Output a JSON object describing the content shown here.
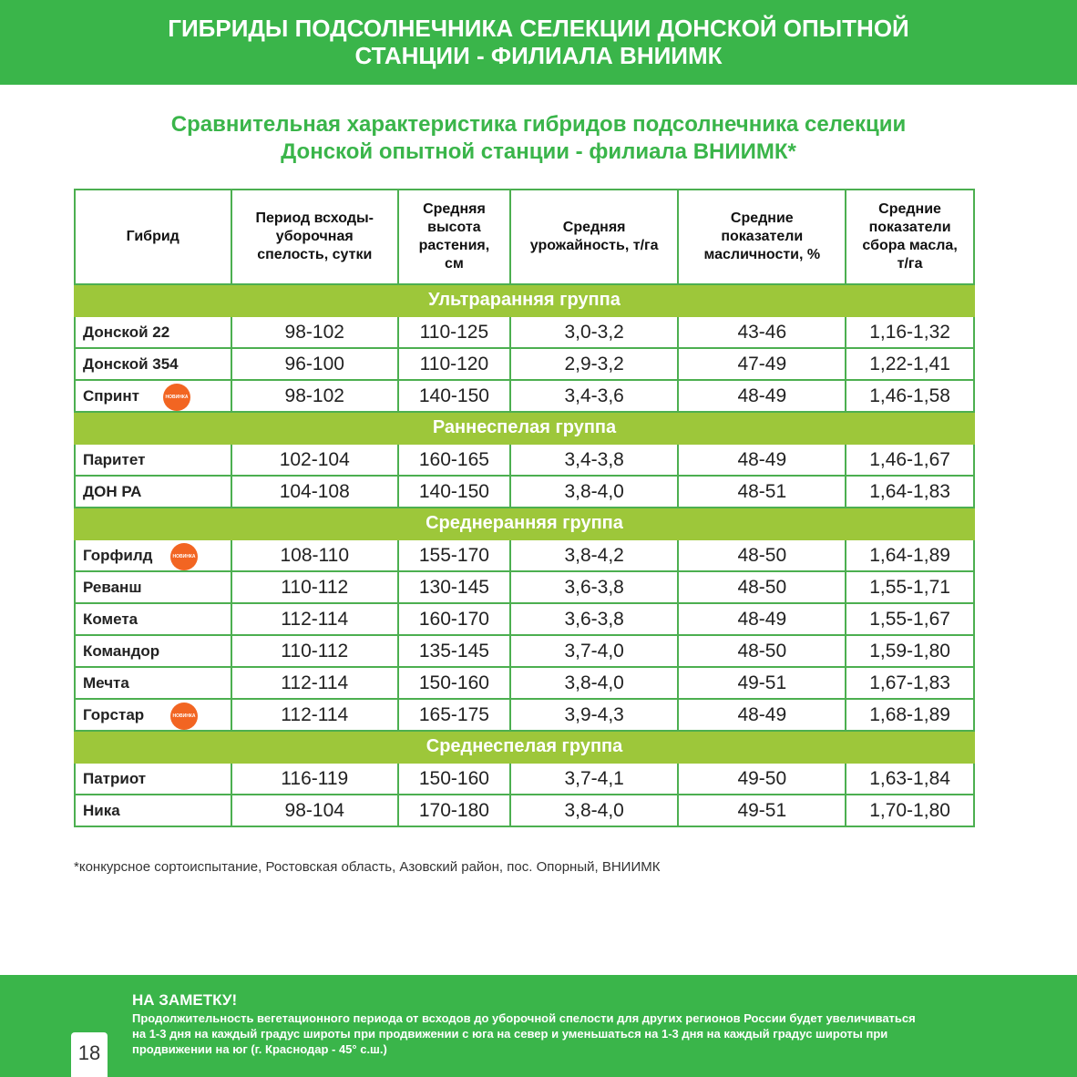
{
  "header": {
    "line1": "ГИБРИДЫ ПОДСОЛНЕЧНИКА СЕЛЕКЦИИ ДОНСКОЙ ОПЫТНОЙ",
    "line2": "СТАНЦИИ - ФИЛИАЛА ВНИИМК"
  },
  "subtitle": {
    "line1": "Сравнительная характеристика гибридов подсолнечника селекции",
    "line2": "Донской опытной станции - филиала ВНИИМК*"
  },
  "columns": [
    "Гибрид",
    "Период всходы-уборочная спелость, сутки",
    "Средняя высота растения, см",
    "Средняя урожайность, т/га",
    "Средние показатели масличности, %",
    "Средние показатели сбора масла, т/га"
  ],
  "badge": "НОВИНКА",
  "groups": [
    {
      "name": "Ультраранняя группа",
      "rows": [
        [
          "Донской 22",
          "98-102",
          "110-125",
          "3,0-3,2",
          "43-46",
          "1,16-1,32",
          false
        ],
        [
          "Донской 354",
          "96-100",
          "110-120",
          "2,9-3,2",
          "47-49",
          "1,22-1,41",
          false
        ],
        [
          "Спринт",
          "98-102",
          "140-150",
          "3,4-3,6",
          "48-49",
          "1,46-1,58",
          true
        ]
      ]
    },
    {
      "name": "Раннеспелая группа",
      "rows": [
        [
          "Паритет",
          "102-104",
          "160-165",
          "3,4-3,8",
          "48-49",
          "1,46-1,67",
          false
        ],
        [
          "ДОН РА",
          "104-108",
          "140-150",
          "3,8-4,0",
          "48-51",
          "1,64-1,83",
          false
        ]
      ]
    },
    {
      "name": "Среднеранняя группа",
      "rows": [
        [
          "Горфилд",
          "108-110",
          "155-170",
          "3,8-4,2",
          "48-50",
          "1,64-1,89",
          true
        ],
        [
          "Реванш",
          "110-112",
          "130-145",
          "3,6-3,8",
          "48-50",
          "1,55-1,71",
          false
        ],
        [
          "Комета",
          "112-114",
          "160-170",
          "3,6-3,8",
          "48-49",
          "1,55-1,67",
          false
        ],
        [
          "Командор",
          "110-112",
          "135-145",
          "3,7-4,0",
          "48-50",
          "1,59-1,80",
          false
        ],
        [
          "Мечта",
          "112-114",
          "150-160",
          "3,8-4,0",
          "49-51",
          "1,67-1,83",
          false
        ],
        [
          "Горстар",
          "112-114",
          "165-175",
          "3,9-4,3",
          "48-49",
          "1,68-1,89",
          true
        ]
      ]
    },
    {
      "name": "Среднеспелая группа",
      "rows": [
        [
          "Патриот",
          "116-119",
          "150-160",
          "3,7-4,1",
          "49-50",
          "1,63-1,84",
          false
        ],
        [
          "Ника",
          "98-104",
          "170-180",
          "3,8-4,0",
          "49-51",
          "1,70-1,80",
          false
        ]
      ]
    }
  ],
  "footnote": "*конкурсное сортоиспытание, Ростовская область, Азовский район, пос. Опорный, ВНИИМК",
  "note": {
    "title": "НА ЗАМЕТКУ!",
    "text": "Продолжительность вегетационного периода от всходов до уборочной спелости для других регионов России будет увеличиваться на 1-3 дня на каждый градус широты при продвижении с юга на север и уменьшаться на 1-3 дня на каждый градус широты при продвижении на юг (г. Краснодар - 45° с.ш.)"
  },
  "page_number": "18"
}
